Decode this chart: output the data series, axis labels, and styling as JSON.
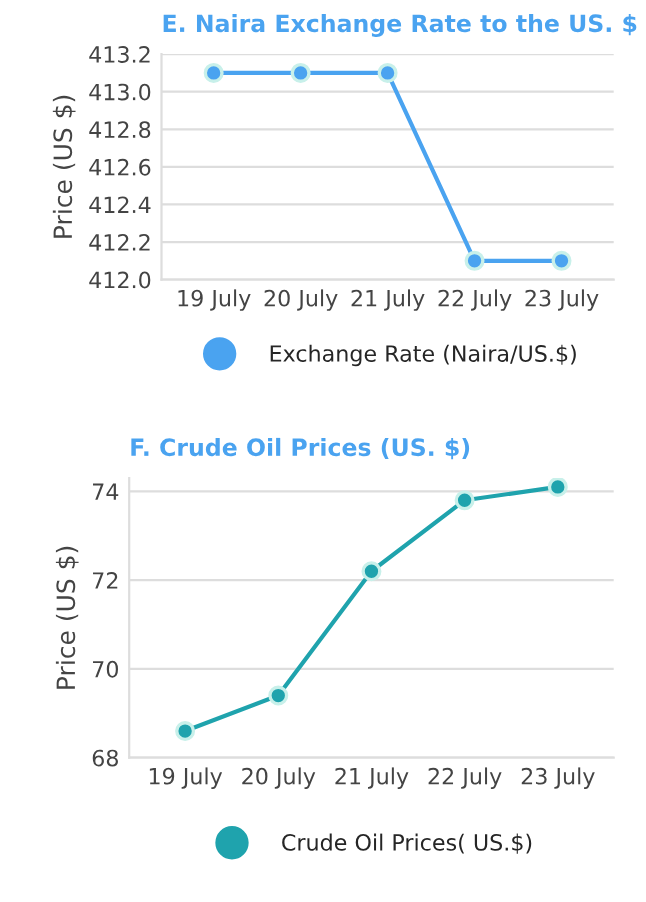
{
  "chart_data": [
    {
      "type": "line",
      "title": "E. Naira Exchange Rate to the US. $",
      "ylabel": "Price (US $)",
      "categories": [
        "19 July",
        "20 July",
        "21 July",
        "22 July",
        "23 July"
      ],
      "series": [
        {
          "name": "Exchange Rate (Naira/US.$)",
          "color": "#4aa3f0",
          "values": [
            413.1,
            413.1,
            413.1,
            412.1,
            412.1
          ]
        }
      ],
      "ylim": [
        412.0,
        413.2
      ],
      "yticks": [
        {
          "value": 412.0,
          "label": "412.0"
        },
        {
          "value": 412.2,
          "label": "412.2"
        },
        {
          "value": 412.4,
          "label": "412.4"
        },
        {
          "value": 412.6,
          "label": "412.6"
        },
        {
          "value": 412.8,
          "label": "412.8"
        },
        {
          "value": 413.0,
          "label": "413.0"
        },
        {
          "value": 413.2,
          "label": "413.2"
        }
      ],
      "grid": "y",
      "legend": "bottom",
      "marker": "circle",
      "line_style": "solid"
    },
    {
      "type": "line",
      "title": "F. Crude Oil Prices (US. $)",
      "ylabel": "Price (US $)",
      "categories": [
        "19 July",
        "20 July",
        "21 July",
        "22 July",
        "23 July"
      ],
      "series": [
        {
          "name": "Crude Oil Prices( US.$)",
          "color": "#1fa3ad",
          "values": [
            68.6,
            69.4,
            72.2,
            73.8,
            74.1
          ]
        }
      ],
      "ylim": [
        68,
        74.3
      ],
      "yticks": [
        68,
        70,
        72,
        74
      ],
      "grid": "y",
      "legend": "bottom",
      "marker": "circle",
      "line_style": "solid"
    }
  ]
}
